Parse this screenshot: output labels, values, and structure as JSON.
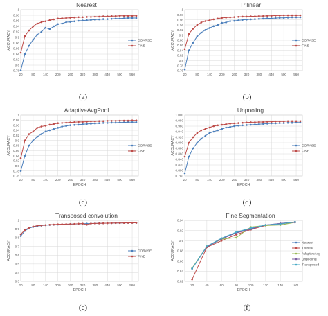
{
  "figure": {
    "panels": [
      {
        "caption": "(a)",
        "chart_data": {
          "type": "line",
          "title": "Nearest",
          "xlabel": "",
          "ylabel": "ACCURACY",
          "xticks": [
            "20",
            "80",
            "140",
            "200",
            "260",
            "320",
            "380",
            "440",
            "500",
            "560"
          ],
          "xlim": [
            20,
            590
          ],
          "yticks": [
            "0.78",
            "0.8",
            "0.82",
            "0.84",
            "0.86",
            "0.88",
            "0.9",
            "0.92",
            "0.94",
            "0.96",
            "0.98",
            "1"
          ],
          "ylim": [
            0.78,
            1.0
          ],
          "legend_position": "right",
          "x": [
            20,
            40,
            60,
            80,
            100,
            120,
            140,
            160,
            180,
            200,
            220,
            240,
            260,
            280,
            300,
            320,
            340,
            360,
            380,
            400,
            420,
            440,
            460,
            480,
            500,
            520,
            540,
            560,
            580
          ],
          "series": [
            {
              "name": "COARSE",
              "color": "#4a7ebb",
              "values": [
                0.781,
                0.84,
                0.87,
                0.892,
                0.91,
                0.92,
                0.935,
                0.93,
                0.94,
                0.948,
                0.95,
                0.955,
                0.956,
                0.958,
                0.96,
                0.961,
                0.962,
                0.963,
                0.964,
                0.965,
                0.966,
                0.966,
                0.967,
                0.968,
                0.968,
                0.969,
                0.97,
                0.97,
                0.97
              ]
            },
            {
              "name": "FINE",
              "color": "#be4b48",
              "values": [
                0.845,
                0.905,
                0.925,
                0.94,
                0.95,
                0.955,
                0.958,
                0.962,
                0.965,
                0.968,
                0.969,
                0.97,
                0.971,
                0.972,
                0.973,
                0.973,
                0.974,
                0.974,
                0.975,
                0.975,
                0.976,
                0.976,
                0.977,
                0.977,
                0.978,
                0.978,
                0.978,
                0.978,
                0.978
              ]
            }
          ]
        }
      },
      {
        "caption": "(b)",
        "chart_data": {
          "type": "line",
          "title": "Trilinear",
          "xlabel": "",
          "ylabel": "ACCURACY",
          "xticks": [
            "20",
            "80",
            "140",
            "200",
            "260",
            "320",
            "380",
            "440",
            "500",
            "560"
          ],
          "xlim": [
            20,
            590
          ],
          "yticks": [
            "0.76",
            "0.78",
            "0.8",
            "0.82",
            "0.84",
            "0.86",
            "0.88",
            "0.9",
            "0.92",
            "0.94",
            "0.96",
            "0.98",
            "1"
          ],
          "ylim": [
            0.76,
            1.0
          ],
          "legend_position": "right",
          "x": [
            20,
            40,
            60,
            80,
            100,
            120,
            140,
            160,
            180,
            200,
            220,
            240,
            260,
            280,
            300,
            320,
            340,
            360,
            380,
            400,
            420,
            440,
            460,
            480,
            500,
            520,
            540,
            560,
            580
          ],
          "series": [
            {
              "name": "CORASE",
              "color": "#4a7ebb",
              "values": [
                0.765,
                0.84,
                0.87,
                0.895,
                0.91,
                0.92,
                0.928,
                0.935,
                0.94,
                0.948,
                0.95,
                0.955,
                0.956,
                0.958,
                0.96,
                0.961,
                0.962,
                0.963,
                0.964,
                0.965,
                0.966,
                0.966,
                0.967,
                0.968,
                0.968,
                0.969,
                0.97,
                0.97,
                0.97
              ]
            },
            {
              "name": "FINE",
              "color": "#be4b48",
              "values": [
                0.845,
                0.905,
                0.925,
                0.94,
                0.95,
                0.955,
                0.958,
                0.962,
                0.965,
                0.968,
                0.969,
                0.97,
                0.971,
                0.972,
                0.973,
                0.973,
                0.974,
                0.974,
                0.975,
                0.975,
                0.976,
                0.976,
                0.977,
                0.977,
                0.978,
                0.978,
                0.978,
                0.978,
                0.978
              ]
            }
          ]
        }
      },
      {
        "caption": "(c)",
        "chart_data": {
          "type": "line",
          "title": "AdaptiveAvgPool",
          "xlabel": "EPOCH",
          "ylabel": "ACCURACY",
          "xticks": [
            "20",
            "80",
            "140",
            "200",
            "260",
            "320",
            "380",
            "440",
            "500",
            "560"
          ],
          "xlim": [
            20,
            590
          ],
          "yticks": [
            "0.76",
            "0.78",
            "0.8",
            "0.82",
            "0.84",
            "0.86",
            "0.88",
            "0.9",
            "0.92",
            "0.94",
            "0.96",
            "0.98",
            "1"
          ],
          "ylim": [
            0.76,
            1.0
          ],
          "legend_position": "right",
          "x": [
            20,
            40,
            60,
            80,
            100,
            120,
            140,
            160,
            180,
            200,
            220,
            240,
            260,
            280,
            300,
            320,
            340,
            360,
            380,
            400,
            420,
            440,
            460,
            480,
            500,
            520,
            540,
            560,
            580
          ],
          "series": [
            {
              "name": "CORASE",
              "color": "#4a7ebb",
              "values": [
                0.78,
                0.84,
                0.88,
                0.9,
                0.915,
                0.925,
                0.935,
                0.94,
                0.945,
                0.95,
                0.955,
                0.957,
                0.96,
                0.961,
                0.962,
                0.964,
                0.965,
                0.966,
                0.967,
                0.968,
                0.969,
                0.969,
                0.97,
                0.97,
                0.971,
                0.971,
                0.972,
                0.972,
                0.972
              ]
            },
            {
              "name": "FINE",
              "color": "#be4b48",
              "values": [
                0.83,
                0.9,
                0.925,
                0.935,
                0.95,
                0.955,
                0.958,
                0.962,
                0.965,
                0.968,
                0.969,
                0.97,
                0.971,
                0.972,
                0.973,
                0.973,
                0.974,
                0.975,
                0.975,
                0.976,
                0.976,
                0.977,
                0.977,
                0.977,
                0.978,
                0.978,
                0.978,
                0.979,
                0.979
              ]
            }
          ]
        }
      },
      {
        "caption": "(d)",
        "chart_data": {
          "type": "line",
          "title": "Unpooling",
          "xlabel": "EPOCH",
          "ylabel": "ACCURACY",
          "xticks": [
            "20",
            "80",
            "140",
            "200",
            "260",
            "320",
            "380",
            "440",
            "500",
            "560"
          ],
          "xlim": [
            20,
            590
          ],
          "yticks": [
            "0.780",
            "0.800",
            "0.820",
            "0.840",
            "0.860",
            "0.880",
            "0.900",
            "0.920",
            "0.940",
            "0.960",
            "0.980",
            "1.000"
          ],
          "ylim": [
            0.78,
            1.0
          ],
          "legend_position": "right",
          "x": [
            20,
            40,
            60,
            80,
            100,
            120,
            140,
            160,
            180,
            200,
            220,
            240,
            260,
            280,
            300,
            320,
            340,
            360,
            380,
            400,
            420,
            440,
            460,
            480,
            500,
            520,
            540,
            560,
            580
          ],
          "series": [
            {
              "name": "CORASE",
              "color": "#4a7ebb",
              "values": [
                0.79,
                0.85,
                0.88,
                0.9,
                0.915,
                0.925,
                0.935,
                0.94,
                0.945,
                0.95,
                0.955,
                0.957,
                0.96,
                0.962,
                0.963,
                0.964,
                0.965,
                0.966,
                0.967,
                0.968,
                0.969,
                0.97,
                0.97,
                0.971,
                0.971,
                0.972,
                0.972,
                0.973,
                0.973
              ]
            },
            {
              "name": "FINE",
              "color": "#be4b48",
              "values": [
                0.85,
                0.9,
                0.92,
                0.935,
                0.945,
                0.95,
                0.955,
                0.96,
                0.963,
                0.965,
                0.967,
                0.969,
                0.97,
                0.971,
                0.972,
                0.973,
                0.974,
                0.974,
                0.975,
                0.975,
                0.976,
                0.976,
                0.977,
                0.977,
                0.977,
                0.978,
                0.978,
                0.978,
                0.978
              ]
            }
          ]
        }
      },
      {
        "caption": "(e)",
        "chart_data": {
          "type": "line",
          "title": "Transposed convolution",
          "xlabel": "EPOCH",
          "ylabel": "ACCURACY",
          "xticks": [
            "20",
            "80",
            "140",
            "200",
            "260",
            "320",
            "380",
            "440",
            "500",
            "560"
          ],
          "xlim": [
            20,
            590
          ],
          "yticks": [
            "0.3",
            "0.4",
            "0.5",
            "0.6",
            "0.7",
            "0.8",
            "0.9",
            "1"
          ],
          "ylim": [
            0.3,
            1.0
          ],
          "legend_position": "right",
          "x": [
            20,
            40,
            60,
            80,
            100,
            120,
            140,
            160,
            180,
            200,
            220,
            240,
            260,
            280,
            300,
            320,
            340,
            360,
            380,
            400,
            420,
            440,
            460,
            480,
            500,
            520,
            540,
            560,
            580
          ],
          "series": [
            {
              "name": "CORASE",
              "color": "#4a7ebb",
              "values": [
                0.82,
                0.88,
                0.91,
                0.925,
                0.935,
                0.94,
                0.945,
                0.948,
                0.95,
                0.952,
                0.954,
                0.955,
                0.957,
                0.958,
                0.96,
                0.962,
                0.963,
                0.964,
                0.965,
                0.966,
                0.967,
                0.968,
                0.969,
                0.97,
                0.97,
                0.971,
                0.972,
                0.972,
                0.972
              ]
            },
            {
              "name": "FINE",
              "color": "#be4b48",
              "values": [
                0.84,
                0.89,
                0.915,
                0.93,
                0.94,
                0.942,
                0.946,
                0.95,
                0.952,
                0.955,
                0.956,
                0.957,
                0.958,
                0.959,
                0.962,
                0.963,
                0.95,
                0.964,
                0.965,
                0.966,
                0.967,
                0.968,
                0.969,
                0.97,
                0.97,
                0.971,
                0.972,
                0.972,
                0.972
              ]
            }
          ]
        }
      },
      {
        "caption": "(f)",
        "chart_data": {
          "type": "line",
          "title": "Fine Segmentation",
          "xlabel": "EPOCH",
          "ylabel": "ACCURACY",
          "xticks": [
            "20",
            "40",
            "60",
            "80",
            "100",
            "120",
            "140",
            "160"
          ],
          "xlim": [
            10,
            170
          ],
          "yticks": [
            "0.82",
            "0.84",
            "0.86",
            "0.88",
            "0.9",
            "0.92",
            "0.94"
          ],
          "ylim": [
            0.82,
            0.94
          ],
          "legend_position": "right",
          "x": [
            20,
            40,
            60,
            80,
            100,
            120,
            140,
            160
          ],
          "series": [
            {
              "name": "Nearest",
              "color": "#4a7ebb",
              "values": [
                0.845,
                0.888,
                0.903,
                0.916,
                0.924,
                0.931,
                0.934,
                0.937
              ]
            },
            {
              "name": "Trilinear",
              "color": "#be4b48",
              "values": [
                0.824,
                0.887,
                0.9,
                0.912,
                0.922,
                0.93,
                0.933,
                0.937
              ]
            },
            {
              "name": "AdaptiveAvg",
              "color": "#98b954",
              "values": [
                0.846,
                0.889,
                0.903,
                0.906,
                0.927,
                0.93,
                0.931,
                0.936
              ]
            },
            {
              "name": "Unpooling",
              "color": "#7d60a0",
              "values": [
                0.845,
                0.888,
                0.904,
                0.915,
                0.923,
                0.931,
                0.934,
                0.936
              ]
            },
            {
              "name": "Transposed",
              "color": "#46aac5",
              "values": [
                0.845,
                0.889,
                0.905,
                0.917,
                0.925,
                0.931,
                0.933,
                0.937
              ]
            }
          ]
        }
      }
    ]
  }
}
